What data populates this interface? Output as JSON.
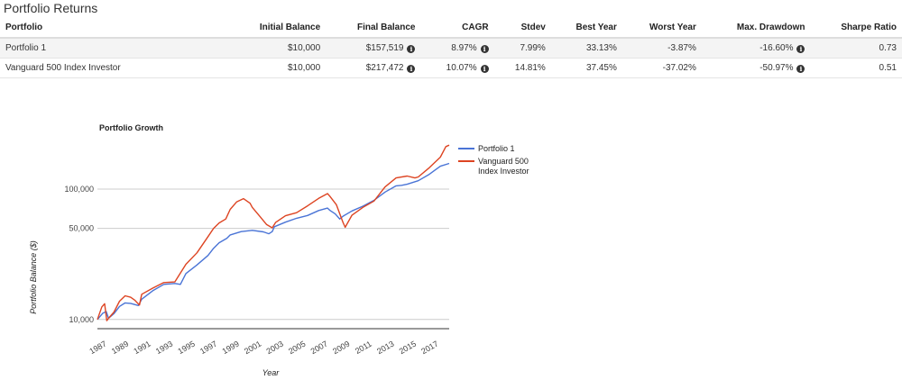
{
  "page": {
    "title": "Portfolio Returns"
  },
  "table": {
    "headers": [
      "Portfolio",
      "Initial Balance",
      "Final Balance",
      "CAGR",
      "Stdev",
      "Best Year",
      "Worst Year",
      "Max. Drawdown",
      "Sharpe Ratio"
    ],
    "rows": [
      {
        "portfolio": "Portfolio 1",
        "initial": "$10,000",
        "final": "$157,519",
        "cagr": "8.97%",
        "stdev": "7.99%",
        "best": "33.13%",
        "worst": "-3.87%",
        "drawdown": "-16.60%",
        "sharpe": "0.73"
      },
      {
        "portfolio": "Vanguard 500 Index Investor",
        "initial": "$10,000",
        "final": "$217,472",
        "cagr": "10.07%",
        "stdev": "14.81%",
        "best": "37.45%",
        "worst": "-37.02%",
        "drawdown": "-50.97%",
        "sharpe": "0.51"
      }
    ],
    "info_icon": "info-icon"
  },
  "chart_data": {
    "type": "line",
    "title": "Portfolio Growth",
    "xlabel": "Year",
    "ylabel": "Portfolio Balance ($)",
    "y_scale": "log",
    "ylim": [
      8500,
      260000
    ],
    "xlim": [
      1987,
      2018.8
    ],
    "y_ticks": [
      10000,
      50000,
      100000
    ],
    "y_tick_labels": [
      "10,000",
      "50,000",
      "100,000"
    ],
    "x_tick_labels": [
      "1987",
      "1989",
      "1991",
      "1993",
      "1995",
      "1997",
      "1999",
      "2001",
      "2003",
      "2005",
      "2007",
      "2009",
      "2011",
      "2013",
      "2015",
      "2017"
    ],
    "grid": true,
    "legend_position": "right",
    "series": [
      {
        "name": "Portfolio 1",
        "color": "#4a74d6",
        "x": [
          1987.0,
          1987.5,
          1987.8,
          1988,
          1988.5,
          1989,
          1989.5,
          1990,
          1990.7,
          1991,
          1992,
          1993,
          1994,
          1994.5,
          1995,
          1996,
          1997,
          1997.5,
          1998,
          1998.7,
          1999,
          2000,
          2001,
          2002,
          2002.5,
          2002.8,
          2003,
          2004,
          2005,
          2006,
          2007,
          2007.8,
          2008,
          2008.5,
          2008.9,
          2009.2,
          2010,
          2011,
          2012,
          2013,
          2014,
          2014.5,
          2015,
          2016,
          2017,
          2018,
          2018.8
        ],
        "y": [
          10000,
          11200,
          11500,
          10200,
          11100,
          12600,
          13400,
          13300,
          12800,
          14300,
          16600,
          18600,
          18900,
          18600,
          22500,
          26200,
          31000,
          35200,
          38800,
          42000,
          44500,
          47200,
          48300,
          47000,
          45500,
          47200,
          51500,
          55800,
          59800,
          62800,
          68500,
          71500,
          69000,
          64500,
          59000,
          62000,
          68000,
          74000,
          82000,
          95000,
          106000,
          107000,
          109000,
          116000,
          130000,
          150000,
          157519
        ]
      },
      {
        "name": "Vanguard 500 Index Investor",
        "color": "#dd4422",
        "x": [
          1987.0,
          1987.4,
          1987.65,
          1987.85,
          1988,
          1988.5,
          1989,
          1989.5,
          1990,
          1990.4,
          1990.8,
          1991,
          1992,
          1993,
          1994,
          1995,
          1996,
          1997,
          1997.5,
          1998,
          1998.6,
          1999,
          1999.6,
          2000.2,
          2000.8,
          2001,
          2001.7,
          2002.3,
          2002.8,
          2003.1,
          2004,
          2005,
          2006,
          2007,
          2007.8,
          2008,
          2008.6,
          2009.2,
          2009.4,
          2010,
          2011,
          2012,
          2013,
          2014,
          2015,
          2015.7,
          2016,
          2017,
          2018,
          2018.5,
          2018.8
        ],
        "y": [
          10000,
          12500,
          13200,
          9800,
          10200,
          11400,
          13800,
          15200,
          14800,
          14000,
          12900,
          15600,
          17400,
          19200,
          19400,
          26500,
          32500,
          43200,
          50000,
          55000,
          59000,
          70000,
          80000,
          84500,
          78000,
          72500,
          61500,
          53500,
          50500,
          55500,
          62500,
          66000,
          74500,
          85000,
          92500,
          88500,
          76000,
          55500,
          51000,
          63000,
          72500,
          81000,
          104000,
          122000,
          126000,
          122000,
          124000,
          146000,
          176000,
          212000,
          217472
        ]
      }
    ]
  }
}
